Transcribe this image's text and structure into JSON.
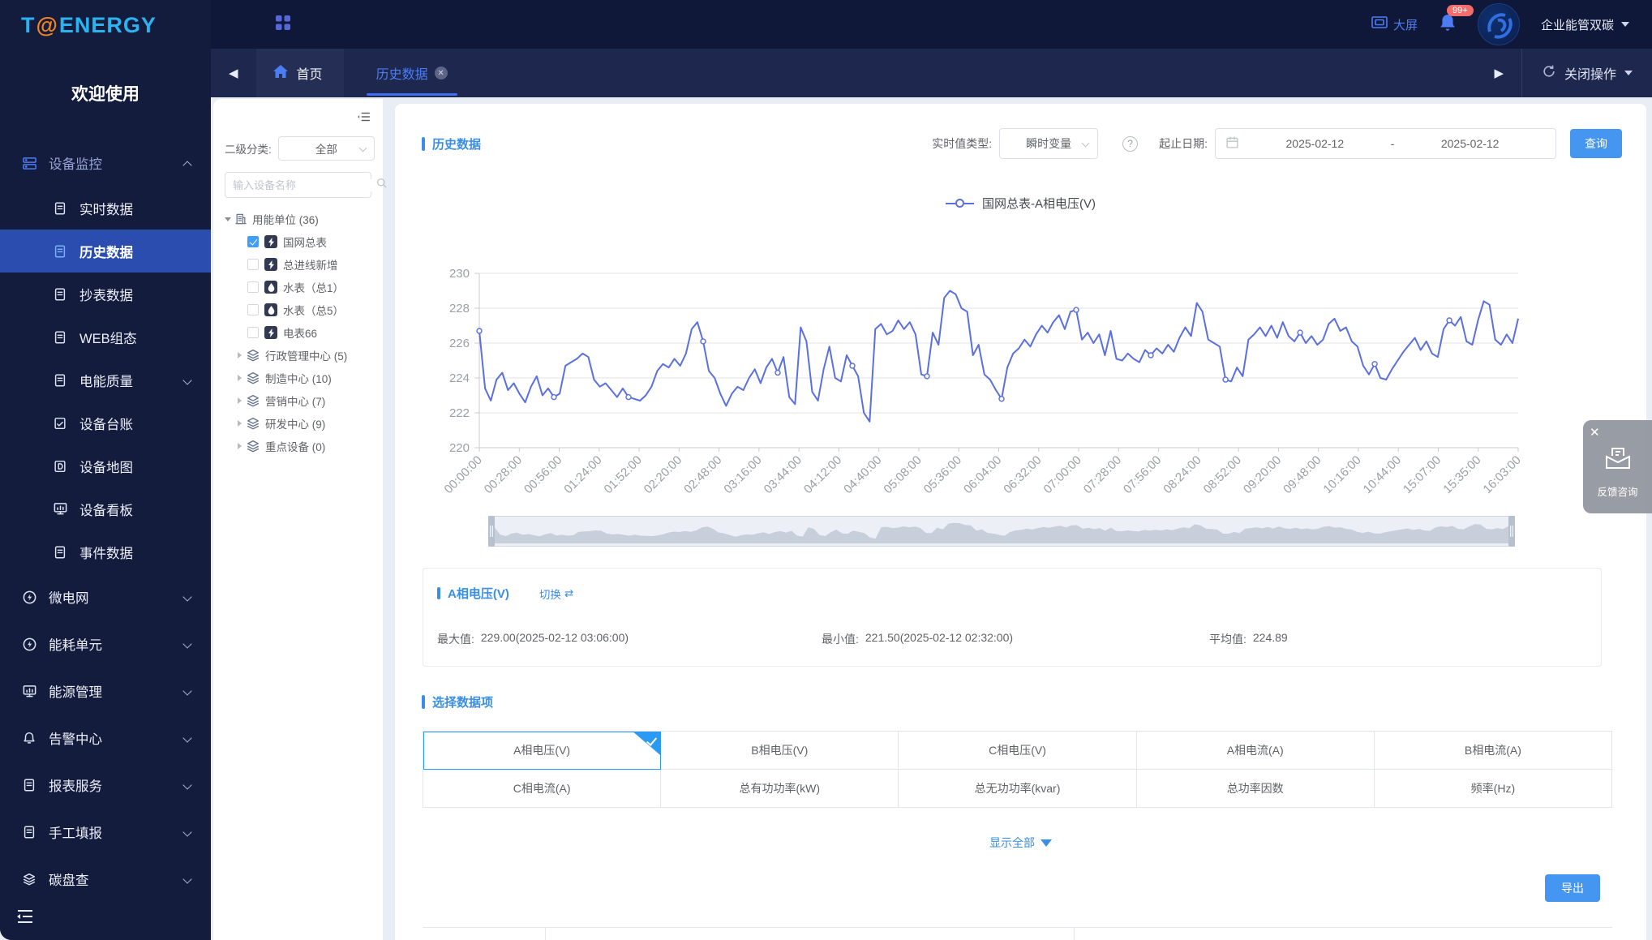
{
  "brand": {
    "logo_t": "T",
    "logo_at": "@",
    "logo_energy": "ENERGY",
    "welcome": "欢迎使用"
  },
  "header": {
    "big_screen_label": "大屏",
    "notification_badge": "99+",
    "workspace_label": "企业能管双碳",
    "close_ops_label": "关闭操作"
  },
  "tabs": {
    "home_label": "首页",
    "active_tab": "历史数据"
  },
  "sidebar": {
    "items": [
      {
        "label": "设备监控",
        "icon": "server",
        "level": 0,
        "group": true,
        "chevron": "up"
      },
      {
        "label": "实时数据",
        "icon": "book",
        "level": 1
      },
      {
        "label": "历史数据",
        "icon": "book",
        "level": 1,
        "active": true
      },
      {
        "label": "抄表数据",
        "icon": "book",
        "level": 1
      },
      {
        "label": "WEB组态",
        "icon": "book",
        "level": 1
      },
      {
        "label": "电能质量",
        "icon": "book",
        "level": 1,
        "chevron": "down"
      },
      {
        "label": "设备台账",
        "icon": "ledger",
        "level": 1
      },
      {
        "label": "设备地图",
        "icon": "map",
        "level": 1
      },
      {
        "label": "设备看板",
        "icon": "board",
        "level": 1
      },
      {
        "label": "事件数据",
        "icon": "book",
        "level": 1
      },
      {
        "label": "微电网",
        "icon": "bolt",
        "level": 0,
        "chevron": "down"
      },
      {
        "label": "能耗单元",
        "icon": "bolt",
        "level": 0,
        "chevron": "down"
      },
      {
        "label": "能源管理",
        "icon": "board",
        "level": 0,
        "chevron": "down"
      },
      {
        "label": "告警中心",
        "icon": "bell",
        "level": 0,
        "chevron": "down"
      },
      {
        "label": "报表服务",
        "icon": "book",
        "level": 0,
        "chevron": "down"
      },
      {
        "label": "手工填报",
        "icon": "book",
        "level": 0,
        "chevron": "down"
      },
      {
        "label": "碳盘查",
        "icon": "layers",
        "level": 0,
        "chevron": "down"
      }
    ]
  },
  "tree_panel": {
    "category_label": "二级分类:",
    "category_value": "全部",
    "search_placeholder": "输入设备名称",
    "root_label": "用能单位 (36)",
    "devices": [
      {
        "label": "国网总表",
        "checked": true,
        "type": "electric"
      },
      {
        "label": "总进线新增",
        "checked": false,
        "type": "electric"
      },
      {
        "label": "水表（总1）",
        "checked": false,
        "type": "water"
      },
      {
        "label": "水表（总5）",
        "checked": false,
        "type": "water"
      },
      {
        "label": "电表66",
        "checked": false,
        "type": "electric"
      }
    ],
    "groups": [
      {
        "label": "行政管理中心 (5)"
      },
      {
        "label": "制造中心 (10)"
      },
      {
        "label": "营销中心 (7)"
      },
      {
        "label": "研发中心 (9)"
      },
      {
        "label": "重点设备 (0)"
      }
    ]
  },
  "main": {
    "page_title": "历史数据",
    "realtime_type_label": "实时值类型:",
    "realtime_type_value": "瞬时变量",
    "help_icon_glyph": "?",
    "date_range_label": "起止日期:",
    "date_start": "2025-02-12",
    "date_separator": "-",
    "date_end": "2025-02-12",
    "query_button": "查询",
    "stats": {
      "title": "A相电压(V)",
      "switch_label": "切换",
      "switch_glyph": "⇄",
      "max_label": "最大值:",
      "max_value": "229.00(2025-02-12 03:06:00)",
      "min_label": "最小值:",
      "min_value": "221.50(2025-02-12 02:32:00)",
      "avg_label": "平均值:",
      "avg_value": "224.89"
    },
    "select_section_title": "选择数据项",
    "data_items": [
      {
        "label": "A相电压(V)",
        "selected": true
      },
      {
        "label": "B相电压(V)",
        "selected": false
      },
      {
        "label": "C相电压(V)",
        "selected": false
      },
      {
        "label": "A相电流(A)",
        "selected": false
      },
      {
        "label": "B相电流(A)",
        "selected": false
      },
      {
        "label": "C相电流(A)",
        "selected": false
      },
      {
        "label": "总有功功率(kW)",
        "selected": false
      },
      {
        "label": "总无功功率(kvar)",
        "selected": false
      },
      {
        "label": "总功率因数",
        "selected": false
      },
      {
        "label": "频率(Hz)",
        "selected": false
      }
    ],
    "show_all_label": "显示全部",
    "export_button": "导出"
  },
  "feedback": {
    "label": "反馈咨询",
    "close_glyph": "✕"
  },
  "chart_data": {
    "type": "line",
    "title": "",
    "legend": [
      "国网总表-A相电压(V)"
    ],
    "legend_position": "top-center",
    "xlabel": "",
    "ylabel": "",
    "ylim": [
      220,
      230
    ],
    "y_ticks": [
      220,
      222,
      224,
      226,
      228,
      230
    ],
    "grid": true,
    "x_tick_labels": [
      "00:00:00",
      "00:28:00",
      "00:56:00",
      "01:24:00",
      "01:52:00",
      "02:20:00",
      "02:48:00",
      "03:16:00",
      "03:44:00",
      "04:12:00",
      "04:40:00",
      "05:08:00",
      "05:36:00",
      "06:04:00",
      "06:32:00",
      "07:00:00",
      "07:28:00",
      "07:56:00",
      "08:24:00",
      "08:52:00",
      "09:20:00",
      "09:48:00",
      "10:16:00",
      "10:44:00",
      "15:07:00",
      "15:35:00",
      "16:03:00"
    ],
    "series": [
      {
        "name": "国网总表-A相电压(V)",
        "color": "#5a6fe0",
        "max": {
          "value": 229.0,
          "time": "2025-02-12 03:06:00"
        },
        "min": {
          "value": 221.5,
          "time": "2025-02-12 02:32:00"
        },
        "avg": 224.89,
        "values": [
          226.7,
          223.4,
          222.7,
          223.9,
          224.3,
          223.3,
          223.7,
          223.1,
          222.6,
          223.5,
          224.1,
          223.0,
          223.4,
          222.9,
          223.1,
          224.7,
          224.9,
          225.1,
          225.4,
          225.2,
          223.9,
          223.5,
          223.7,
          223.3,
          222.9,
          223.4,
          222.9,
          222.8,
          222.7,
          223.0,
          223.5,
          224.4,
          224.8,
          224.6,
          225.1,
          224.7,
          225.4,
          226.8,
          227.2,
          226.1,
          224.4,
          224.0,
          223.1,
          222.4,
          223.1,
          223.5,
          223.3,
          224.0,
          224.5,
          223.7,
          224.6,
          225.1,
          224.3,
          225.2,
          222.9,
          222.5,
          226.9,
          226.1,
          223.2,
          222.7,
          224.5,
          225.8,
          224.0,
          223.8,
          225.3,
          224.7,
          224.1,
          222.0,
          221.5,
          226.8,
          227.1,
          226.5,
          226.7,
          227.3,
          226.8,
          227.2,
          226.5,
          224.2,
          224.1,
          226.6,
          225.9,
          228.6,
          229.0,
          228.8,
          228.0,
          227.8,
          225.3,
          225.9,
          224.2,
          223.9,
          223.3,
          222.8,
          224.6,
          225.4,
          225.7,
          226.2,
          225.8,
          226.5,
          227.0,
          226.6,
          227.2,
          227.6,
          226.8,
          227.8,
          227.9,
          226.2,
          226.6,
          226.0,
          226.5,
          225.3,
          226.7,
          225.1,
          225.0,
          225.4,
          225.1,
          224.9,
          225.6,
          225.3,
          225.7,
          225.4,
          225.9,
          225.5,
          226.3,
          226.9,
          226.4,
          228.3,
          227.8,
          226.2,
          226.0,
          225.8,
          223.9,
          223.8,
          224.6,
          224.1,
          226.2,
          226.5,
          226.9,
          226.4,
          227.0,
          226.3,
          227.2,
          226.4,
          226.1,
          226.6,
          226.0,
          226.4,
          225.9,
          226.2,
          227.1,
          227.4,
          226.7,
          226.9,
          226.1,
          225.8,
          224.7,
          224.2,
          224.8,
          224.0,
          223.9,
          224.5,
          225.0,
          225.5,
          225.9,
          226.3,
          225.6,
          226.1,
          225.4,
          225.2,
          226.8,
          227.3,
          227.0,
          227.5,
          226.1,
          225.9,
          227.3,
          228.4,
          228.2,
          226.2,
          225.9,
          226.5,
          226.0,
          227.4
        ]
      }
    ],
    "datazoom": {
      "start_percent": 0,
      "end_percent": 100
    }
  },
  "colors": {
    "accent": "#4596f0",
    "link": "#3a8ee6",
    "line": "#5a6fe0",
    "sidebar_active": "#2a4daf",
    "badge": "#f56c6c"
  }
}
